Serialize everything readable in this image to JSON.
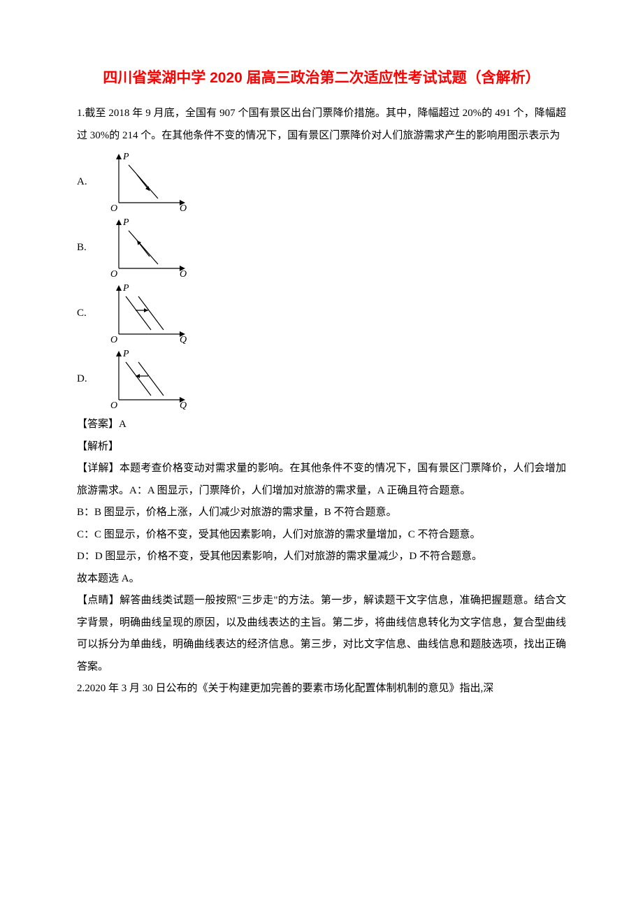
{
  "title": {
    "text": "四川省棠湖中学 2020 届高三政治第二次适应性考试试题（含解析）",
    "color": "#ff0000",
    "fontsize": 21
  },
  "question1": {
    "stem": "1.截至 2018 年 9 月底，全国有 907 个国有景区出台门票降价措施。其中，降幅超过 20%的 491 个，降幅超过 30%的 214 个。在其他条件不变的情况下，国有景区门票降价对人们旅游需求产生的影响用图示表示为",
    "options": [
      {
        "label": "A.",
        "type": "point_down",
        "x_axis_label": "O"
      },
      {
        "label": "B.",
        "type": "point_up",
        "x_axis_label": "O"
      },
      {
        "label": "C.",
        "type": "shift_right",
        "x_axis_label": "Q"
      },
      {
        "label": "D.",
        "type": "shift_left",
        "x_axis_label": "Q"
      }
    ],
    "graph_style": {
      "axis_color": "#000000",
      "line_color": "#000000",
      "axis_stroke": 1.2,
      "line_stroke": 1.2,
      "y_label": "P",
      "origin_label": "O",
      "label_fontsize": 14,
      "label_font_style": "italic",
      "arrow_size": 5
    },
    "answer_label": "【答案】",
    "answer_value": "A",
    "analysis_label": "【解析】",
    "detail_label": "【详解】",
    "detail_intro": "本题考查价格变动对需求量的影响。在其他条件不变的情况下，国有景区门票降价，人们会增加旅游需求。A：A 图显示，门票降价，人们增加对旅游的需求量，A 正确且符合题意。",
    "detail_b": "B：B 图显示，价格上涨，人们减少对旅游的需求量，B 不符合题意。",
    "detail_c": "C：C 图显示，价格不变，受其他因素影响，人们对旅游的需求量增加，C 不符合题意。",
    "detail_d": "D：D 图显示，价格不变，受其他因素影响，人们对旅游的需求量减少，D 不符合题意。",
    "conclusion": "故本题选 A。",
    "tip_label": "【点睛】",
    "tip_text": "解答曲线类试题一般按照\"三步走\"的方法。第一步，解读题干文字信息，准确把握题意。结合文字背景，明确曲线呈现的原因，以及曲线表达的主旨。第二步，将曲线信息转化为文字信息，复合型曲线可以拆分为单曲线，明确曲线表达的经济信息。第三步，对比文字信息、曲线信息和题肢选项，找出正确答案。"
  },
  "question2": {
    "stem": "2.2020 年 3 月 30 日公布的《关于构建更加完善的要素市场化配置体制机制的意见》指出,深"
  },
  "colors": {
    "text": "#000000",
    "background": "#ffffff"
  },
  "fontsize": {
    "body": 15,
    "line_height": 2.1
  }
}
